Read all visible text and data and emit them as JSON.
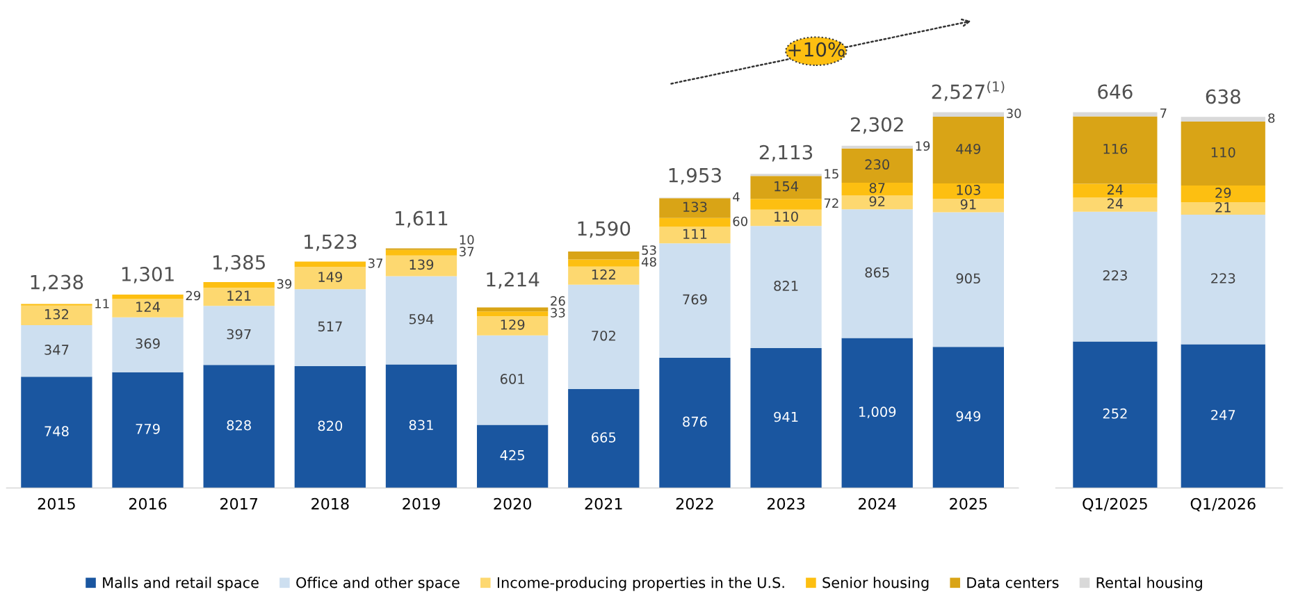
{
  "chart_data": [
    {
      "type": "bar",
      "stacked": true,
      "data_labels": true,
      "legend": "bottom",
      "categories": [
        "2015",
        "2016",
        "2017",
        "2018",
        "2019",
        "2020",
        "2021",
        "2022",
        "2023",
        "2024",
        "2025"
      ],
      "series": [
        {
          "name": "Malls and retail space",
          "color": "#1a56a0",
          "values": [
            748,
            779,
            828,
            820,
            831,
            425,
            665,
            876,
            941,
            1009,
            949
          ],
          "value_labels": [
            "748",
            "779",
            "828",
            "820",
            "831",
            "425",
            "665",
            "876",
            "941",
            "1,009",
            "949"
          ]
        },
        {
          "name": "Office and other space",
          "color": "#cddff0",
          "values": [
            347,
            369,
            397,
            517,
            594,
            601,
            702,
            769,
            821,
            865,
            905
          ]
        },
        {
          "name": "Income-producing properties in the U.S.",
          "color": "#fdd870",
          "values": [
            132,
            124,
            121,
            149,
            139,
            129,
            122,
            111,
            110,
            92,
            91
          ]
        },
        {
          "name": "Senior housing",
          "color": "#fdbf11",
          "values": [
            11,
            29,
            39,
            37,
            37,
            33,
            48,
            60,
            72,
            87,
            103
          ]
        },
        {
          "name": "Data centers",
          "color": "#d9a416",
          "values": [
            null,
            null,
            null,
            null,
            10,
            26,
            53,
            133,
            154,
            230,
            449
          ]
        },
        {
          "name": "Rental housing",
          "color": "#d9d9d9",
          "values": [
            null,
            null,
            null,
            null,
            null,
            null,
            null,
            4,
            15,
            19,
            30
          ]
        }
      ],
      "totals": [
        "1,238",
        "1,301",
        "1,385",
        "1,523",
        "1,611",
        "1,214",
        "1,590",
        "1,953",
        "2,113",
        "2,302",
        "2,527$^{(1)}$"
      ],
      "annotations": [
        "+10%"
      ]
    },
    {
      "type": "bar",
      "stacked": true,
      "data_labels": true,
      "categories": [
        "Q1/2025",
        "Q1/2026"
      ],
      "series": [
        {
          "color": "#1a56a0",
          "values": [
            252,
            247
          ]
        },
        {
          "color": "#cddff0",
          "values": [
            223,
            223
          ]
        },
        {
          "color": "#fdd870",
          "values": [
            24,
            21
          ]
        },
        {
          "color": "#fdbf11",
          "values": [
            24,
            29
          ]
        },
        {
          "color": "#d9a416",
          "values": [
            116,
            110
          ]
        },
        {
          "color": "#d9d9d9",
          "values": [
            7,
            8
          ]
        }
      ],
      "totals": [
        "646",
        "638"
      ]
    }
  ]
}
